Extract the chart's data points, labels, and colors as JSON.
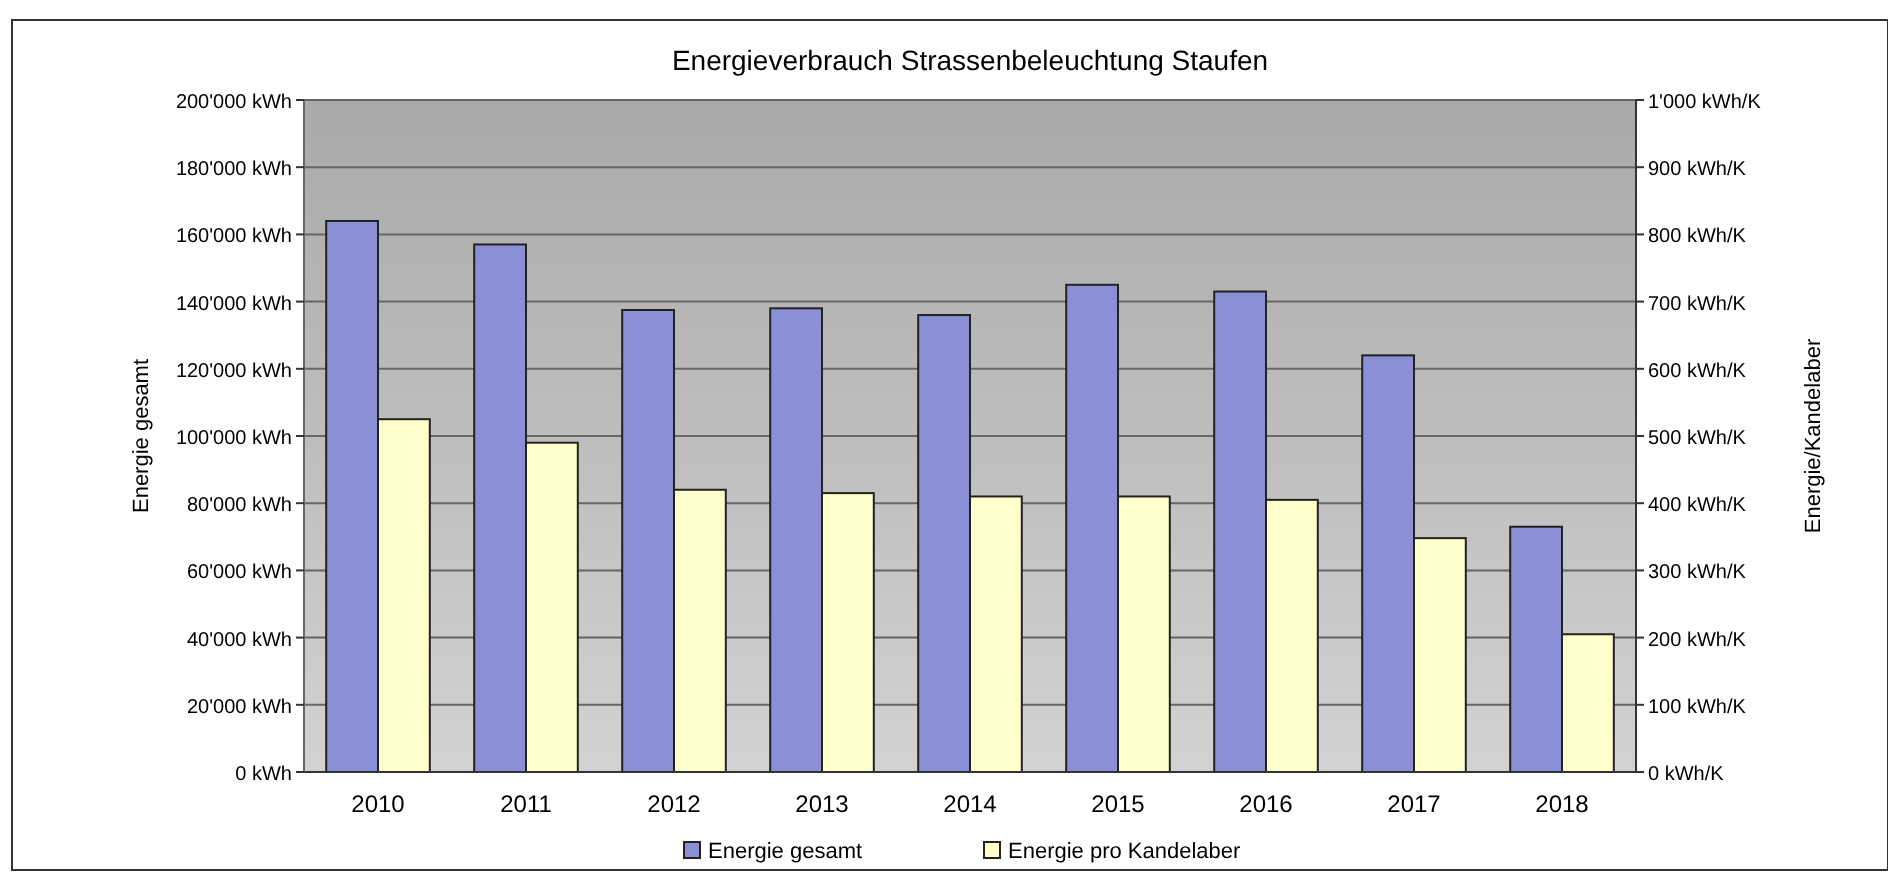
{
  "chart_data": {
    "type": "bar",
    "title": "Energieverbrauch Strassenbeleuchtung Staufen",
    "ylabel": "Energie gesamt",
    "y2label": "Energie/Kandelaber",
    "categories": [
      "2010",
      "2011",
      "2012",
      "2013",
      "2014",
      "2015",
      "2016",
      "2017",
      "2018"
    ],
    "series": [
      {
        "name": "Energie gesamt",
        "color": "#8a8fd6",
        "values": [
          164000,
          157000,
          137500,
          138000,
          136000,
          145000,
          143000,
          124000,
          73000
        ]
      },
      {
        "name": "Energie pro Kandelaber",
        "color": "#ffffcc",
        "axis": "y2",
        "values": [
          525,
          490,
          420,
          415,
          410,
          410,
          405,
          348,
          205
        ]
      }
    ],
    "ylim": [
      0,
      200000
    ],
    "yticks": [
      {
        "value": 0,
        "label": "0 kWh"
      },
      {
        "value": 20000,
        "label": "20'000 kWh"
      },
      {
        "value": 40000,
        "label": "40'000 kWh"
      },
      {
        "value": 60000,
        "label": "60'000 kWh"
      },
      {
        "value": 80000,
        "label": "80'000 kWh"
      },
      {
        "value": 100000,
        "label": "100'000 kWh"
      },
      {
        "value": 120000,
        "label": "120'000 kWh"
      },
      {
        "value": 140000,
        "label": "140'000 kWh"
      },
      {
        "value": 160000,
        "label": "160'000 kWh"
      },
      {
        "value": 180000,
        "label": "180'000 kWh"
      },
      {
        "value": 200000,
        "label": "200'000 kWh"
      }
    ],
    "y2lim": [
      0,
      1000
    ],
    "y2ticks": [
      {
        "value": 0,
        "label": "0 kWh/K"
      },
      {
        "value": 100,
        "label": "100 kWh/K"
      },
      {
        "value": 200,
        "label": "200 kWh/K"
      },
      {
        "value": 300,
        "label": "300 kWh/K"
      },
      {
        "value": 400,
        "label": "400 kWh/K"
      },
      {
        "value": 500,
        "label": "500 kWh/K"
      },
      {
        "value": 600,
        "label": "600 kWh/K"
      },
      {
        "value": 700,
        "label": "700 kWh/K"
      },
      {
        "value": 800,
        "label": "800 kWh/K"
      },
      {
        "value": 900,
        "label": "900 kWh/K"
      },
      {
        "value": 1000,
        "label": "1'000 kWh/K"
      }
    ],
    "grid": "y",
    "legend": "bottom"
  }
}
